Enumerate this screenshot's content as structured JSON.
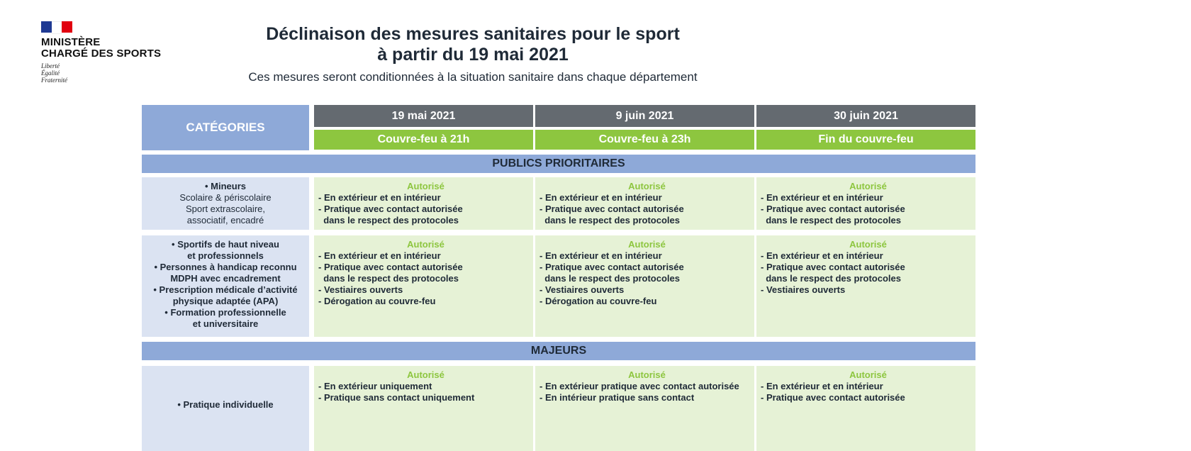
{
  "logo": {
    "line1": "MINISTÈRE",
    "line2": "CHARGÉ DES SPORTS",
    "motto": [
      "Liberté",
      "Égalité",
      "Fraternité"
    ]
  },
  "header": {
    "title_line1": "Déclinaison des mesures sanitaires pour le sport",
    "title_line2": "à partir du 19 mai 2021",
    "subtitle": "Ces mesures seront conditionnées à la situation sanitaire dans chaque département"
  },
  "table": {
    "categories_label": "CATÉGORIES",
    "dates": [
      "19 mai 2021",
      "9 juin 2021",
      "30 juin 2021"
    ],
    "curfews": [
      "Couvre-feu à 21h",
      "Couvre-feu à 23h",
      "Fin du couvre-feu"
    ],
    "sections": {
      "prioritaires": "PUBLICS PRIORITAIRES",
      "majeurs": "MAJEURS"
    },
    "row1": {
      "label": [
        "• Mineurs",
        "Scolaire & périscolaire",
        "Sport extrascolaire,",
        "associatif, encadré"
      ],
      "status": "Autorisé",
      "cols": [
        [
          "- En extérieur et en intérieur",
          "- Pratique avec contact autorisée",
          "  dans le respect des protocoles"
        ],
        [
          "- En extérieur et en intérieur",
          "- Pratique avec contact autorisée",
          "  dans le respect des protocoles"
        ],
        [
          "- En extérieur et en intérieur",
          "- Pratique avec contact autorisée",
          "  dans le respect des protocoles"
        ]
      ]
    },
    "row2": {
      "label": [
        "• Sportifs de haut niveau",
        "et professionnels",
        "• Personnes à handicap reconnu",
        "MDPH avec encadrement",
        "• Prescription médicale d’activité",
        "physique adaptée (APA)",
        "• Formation professionnelle",
        "et universitaire"
      ],
      "status": "Autorisé",
      "cols": [
        [
          "- En extérieur et en intérieur",
          "- Pratique avec contact autorisée",
          "  dans le respect des protocoles",
          "- Vestiaires ouverts",
          "- Dérogation au couvre-feu"
        ],
        [
          "- En extérieur et en intérieur",
          "- Pratique avec contact autorisée",
          "  dans le respect des protocoles",
          "- Vestiaires ouverts",
          "- Dérogation au couvre-feu"
        ],
        [
          "- En extérieur et en intérieur",
          "- Pratique avec contact autorisée",
          "  dans le respect des protocoles",
          "- Vestiaires ouverts"
        ]
      ]
    },
    "row3": {
      "label": [
        "• Pratique individuelle"
      ],
      "status": "Autorisé",
      "cols": [
        [
          "- En extérieur uniquement",
          "- Pratique sans contact uniquement"
        ],
        [
          "- En extérieur pratique avec contact autorisée",
          "- En intérieur pratique sans contact"
        ],
        [
          "- En extérieur et en intérieur",
          "- Pratique avec contact autorisée"
        ]
      ]
    }
  }
}
